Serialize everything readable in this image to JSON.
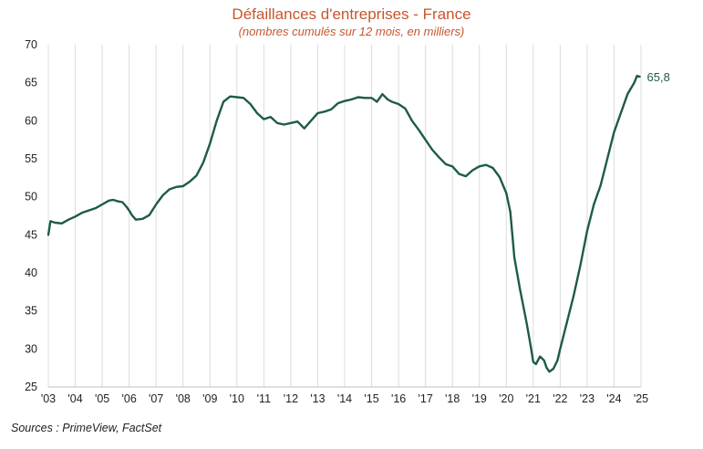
{
  "chart_data": {
    "type": "line",
    "title": "Défaillances d'entreprises - France",
    "subtitle": "(nombres cumulés sur 12 mois, en milliers)",
    "source": "Sources : PrimeView, FactSet",
    "xlabel": "",
    "ylabel": "",
    "x_tick_labels": [
      "'03",
      "'04",
      "'05",
      "'06",
      "'07",
      "'08",
      "'09",
      "'10",
      "'11",
      "'12",
      "'13",
      "'14",
      "'15",
      "'16",
      "'17",
      "'18",
      "'19",
      "'20",
      "'21",
      "'22",
      "'23",
      "'24",
      "'25"
    ],
    "y_ticks": [
      25,
      30,
      35,
      40,
      45,
      50,
      55,
      60,
      65,
      70
    ],
    "ylim": [
      25,
      70
    ],
    "xlim": [
      2003.0,
      2025.0
    ],
    "grid": "vertical",
    "line_color": "#1d5c45",
    "end_label": "65,8",
    "series": [
      {
        "x": [
          2003.0,
          2003.08,
          2003.25,
          2003.5,
          2003.75,
          2004.0,
          2004.25,
          2004.5,
          2004.75,
          2005.0,
          2005.25,
          2005.4,
          2005.6,
          2005.75,
          2005.9,
          2006.0,
          2006.1,
          2006.25,
          2006.5,
          2006.75,
          2007.0,
          2007.25,
          2007.5,
          2007.75,
          2008.0,
          2008.25,
          2008.5,
          2008.75,
          2009.0,
          2009.25,
          2009.5,
          2009.75,
          2010.0,
          2010.25,
          2010.5,
          2010.75,
          2011.0,
          2011.25,
          2011.5,
          2011.75,
          2012.0,
          2012.25,
          2012.5,
          2012.75,
          2013.0,
          2013.25,
          2013.5,
          2013.75,
          2014.0,
          2014.25,
          2014.5,
          2014.75,
          2015.0,
          2015.2,
          2015.4,
          2015.6,
          2015.75,
          2016.0,
          2016.25,
          2016.5,
          2016.75,
          2017.0,
          2017.25,
          2017.5,
          2017.75,
          2018.0,
          2018.25,
          2018.5,
          2018.75,
          2019.0,
          2019.25,
          2019.5,
          2019.75,
          2020.0,
          2020.15,
          2020.3,
          2020.5,
          2020.75,
          2020.9,
          2021.0,
          2021.1,
          2021.25,
          2021.4,
          2021.5,
          2021.6,
          2021.75,
          2021.9,
          2022.0,
          2022.25,
          2022.5,
          2022.75,
          2023.0,
          2023.25,
          2023.5,
          2023.75,
          2024.0,
          2024.25,
          2024.5,
          2024.75,
          2024.85,
          2024.95
        ],
        "y": [
          45.0,
          46.8,
          46.6,
          46.5,
          47.0,
          47.4,
          47.9,
          48.2,
          48.5,
          49.0,
          49.5,
          49.6,
          49.4,
          49.3,
          48.7,
          48.2,
          47.6,
          47.0,
          47.1,
          47.6,
          49.0,
          50.2,
          51.0,
          51.3,
          51.4,
          52.0,
          52.8,
          54.5,
          57.0,
          60.0,
          62.5,
          63.2,
          63.1,
          63.0,
          62.2,
          61.0,
          60.2,
          60.5,
          59.7,
          59.5,
          59.7,
          59.9,
          59.0,
          60.0,
          61.0,
          61.2,
          61.5,
          62.3,
          62.6,
          62.8,
          63.1,
          63.0,
          63.0,
          62.5,
          63.5,
          62.8,
          62.5,
          62.2,
          61.6,
          60.0,
          58.8,
          57.5,
          56.2,
          55.2,
          54.3,
          54.0,
          53.0,
          52.7,
          53.5,
          54.0,
          54.2,
          53.8,
          52.6,
          50.5,
          48.0,
          42.0,
          38.0,
          33.5,
          30.5,
          28.3,
          28.0,
          29.0,
          28.5,
          27.5,
          27.0,
          27.4,
          28.5,
          30.0,
          33.5,
          37.0,
          41.0,
          45.5,
          49.0,
          51.5,
          55.0,
          58.5,
          61.0,
          63.5,
          65.0,
          65.9,
          65.8
        ]
      }
    ]
  }
}
